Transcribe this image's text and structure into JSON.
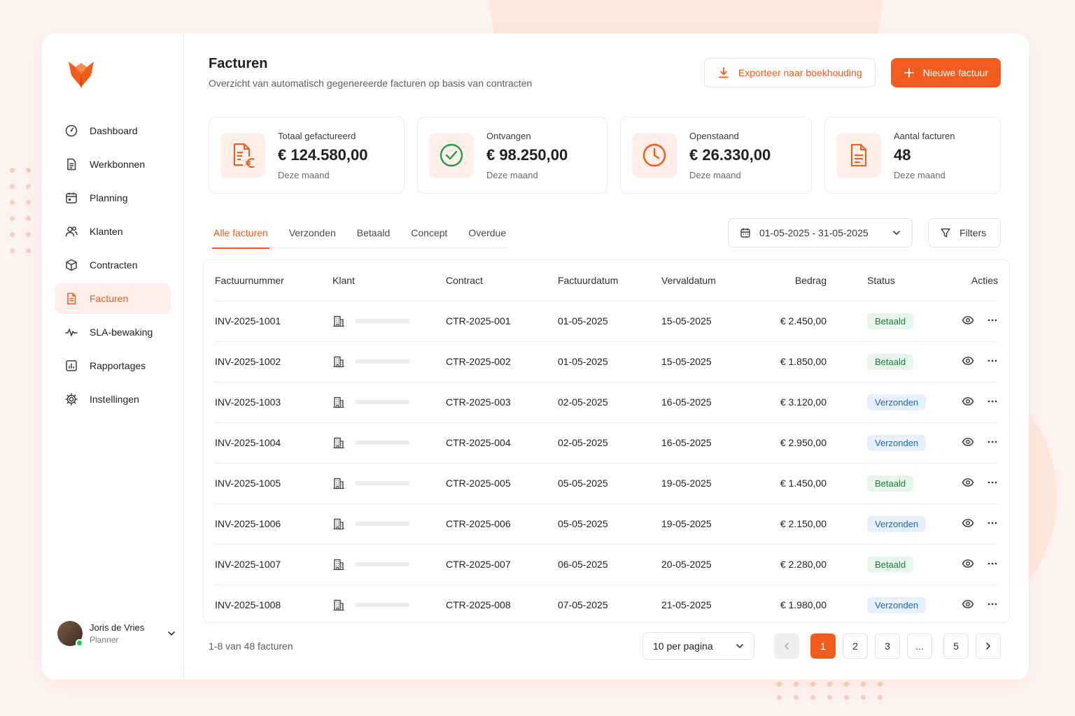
{
  "brand": {
    "accent": "#f25c1c"
  },
  "nav": {
    "items": [
      {
        "label": "Dashboard",
        "icon": "dashboard-icon"
      },
      {
        "label": "Werkbonnen",
        "icon": "document-icon"
      },
      {
        "label": "Planning",
        "icon": "calendar-icon"
      },
      {
        "label": "Klanten",
        "icon": "users-icon"
      },
      {
        "label": "Contracten",
        "icon": "box-icon"
      },
      {
        "label": "Facturen",
        "icon": "invoice-icon",
        "active": true
      },
      {
        "label": "SLA-bewaking",
        "icon": "pulse-icon"
      },
      {
        "label": "Rapportages",
        "icon": "report-icon"
      },
      {
        "label": "Instellingen",
        "icon": "gear-icon"
      }
    ]
  },
  "user": {
    "name": "Joris de Vries",
    "role": "Planner"
  },
  "header": {
    "title": "Facturen",
    "subtitle": "Overzicht van automatisch gegenereerde facturen op basis van contracten",
    "export_label": "Exporteer naar boekhouding",
    "new_label": "Nieuwe factuur"
  },
  "stats": [
    {
      "label": "Totaal gefactureerd",
      "value": "€ 124.580,00",
      "period": "Deze maand",
      "icon": "invoice-euro-icon"
    },
    {
      "label": "Ontvangen",
      "value": "€ 98.250,00",
      "period": "Deze maand",
      "icon": "check-circle-icon"
    },
    {
      "label": "Openstaand",
      "value": "€ 26.330,00",
      "period": "Deze maand",
      "icon": "clock-icon"
    },
    {
      "label": "Aantal facturen",
      "value": "48",
      "period": "Deze maand",
      "icon": "file-icon"
    }
  ],
  "tabs": [
    "Alle facturen",
    "Verzonden",
    "Betaald",
    "Concept",
    "Overdue"
  ],
  "date_range": "01-05-2025 - 31-05-2025",
  "filters_label": "Filters",
  "table": {
    "headers": [
      "Factuurnummer",
      "Klant",
      "Contract",
      "Factuurdatum",
      "Vervaldatum",
      "Bedrag",
      "Status",
      "Acties"
    ],
    "rows": [
      {
        "nr": "INV-2025-1001",
        "contract": "CTR-2025-001",
        "date": "01-05-2025",
        "due": "15-05-2025",
        "amount": "€ 2.450,00",
        "status": "Betaald"
      },
      {
        "nr": "INV-2025-1002",
        "contract": "CTR-2025-002",
        "date": "01-05-2025",
        "due": "15-05-2025",
        "amount": "€ 1.850,00",
        "status": "Betaald"
      },
      {
        "nr": "INV-2025-1003",
        "contract": "CTR-2025-003",
        "date": "02-05-2025",
        "due": "16-05-2025",
        "amount": "€ 3.120,00",
        "status": "Verzonden"
      },
      {
        "nr": "INV-2025-1004",
        "contract": "CTR-2025-004",
        "date": "02-05-2025",
        "due": "16-05-2025",
        "amount": "€ 2.950,00",
        "status": "Verzonden"
      },
      {
        "nr": "INV-2025-1005",
        "contract": "CTR-2025-005",
        "date": "05-05-2025",
        "due": "19-05-2025",
        "amount": "€ 1.450,00",
        "status": "Betaald"
      },
      {
        "nr": "INV-2025-1006",
        "contract": "CTR-2025-006",
        "date": "05-05-2025",
        "due": "19-05-2025",
        "amount": "€ 2.150,00",
        "status": "Verzonden"
      },
      {
        "nr": "INV-2025-1007",
        "contract": "CTR-2025-007",
        "date": "06-05-2025",
        "due": "20-05-2025",
        "amount": "€ 2.280,00",
        "status": "Betaald"
      },
      {
        "nr": "INV-2025-1008",
        "contract": "CTR-2025-008",
        "date": "07-05-2025",
        "due": "21-05-2025",
        "amount": "€ 1.980,00",
        "status": "Verzonden"
      }
    ]
  },
  "footer": {
    "count": "1-8 van 48 facturen",
    "per_page": "10 per pagina",
    "pages": [
      "1",
      "2",
      "3",
      "...",
      "5"
    ],
    "current_page": "1"
  }
}
